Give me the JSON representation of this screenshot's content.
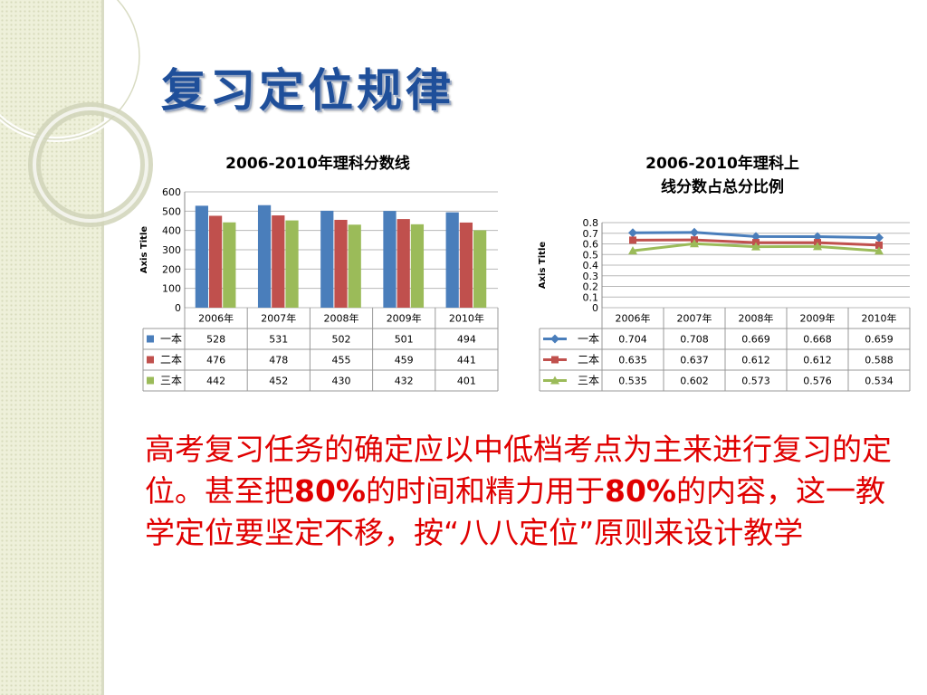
{
  "slide": {
    "title": "复习定位规律",
    "body_parts": [
      "高考复习任务的确定应以中低档考点为主来进行复习的定位。甚至把",
      "80%",
      "的时间和精力用于",
      "80%",
      "的内容，这一教学定位要坚定不移，按“八八定位”原则来设计教学"
    ]
  },
  "chart_data": [
    {
      "type": "bar",
      "title": "2006-2010年理科分数线",
      "ylabel": "Axis Title",
      "xlabel": "",
      "categories": [
        "2006年",
        "2007年",
        "2008年",
        "2009年",
        "2010年"
      ],
      "ylim": [
        0,
        600
      ],
      "yticks": [
        "0",
        "100",
        "200",
        "300",
        "400",
        "500",
        "600"
      ],
      "grid": true,
      "legend": "data-table",
      "series": [
        {
          "name": "一本",
          "color": "#4a7ebb",
          "values": [
            528,
            531,
            502,
            501,
            494
          ],
          "labels": [
            "528",
            "531",
            "502",
            "501",
            "494"
          ]
        },
        {
          "name": "二本",
          "color": "#c0504d",
          "values": [
            476,
            478,
            455,
            459,
            441
          ],
          "labels": [
            "476",
            "478",
            "455",
            "459",
            "441"
          ]
        },
        {
          "name": "三本",
          "color": "#9bbb59",
          "values": [
            442,
            452,
            430,
            432,
            401
          ],
          "labels": [
            "442",
            "452",
            "430",
            "432",
            "401"
          ]
        }
      ]
    },
    {
      "type": "line",
      "title": "2006-2010年理科上线分数占总分比例",
      "ylabel": "Axis Title",
      "xlabel": "",
      "categories": [
        "2006年",
        "2007年",
        "2008年",
        "2009年",
        "2010年"
      ],
      "ylim": [
        0,
        0.8
      ],
      "yticks": [
        "0",
        "0.1",
        "0.2",
        "0.3",
        "0.4",
        "0.5",
        "0.6",
        "0.7",
        "0.8"
      ],
      "grid": true,
      "legend": "data-table",
      "series": [
        {
          "name": "一本",
          "color": "#4a7ebb",
          "marker": "diamond",
          "values": [
            0.704,
            0.708,
            0.669,
            0.668,
            0.659
          ],
          "labels": [
            "0.704",
            "0.708",
            "0.669",
            "0.668",
            "0.659"
          ]
        },
        {
          "name": "二本",
          "color": "#c0504d",
          "marker": "square",
          "values": [
            0.635,
            0.637,
            0.612,
            0.612,
            0.588
          ],
          "labels": [
            "0.635",
            "0.637",
            "0.612",
            "0.612",
            "0.588"
          ]
        },
        {
          "name": "三本",
          "color": "#9bbb59",
          "marker": "triangle",
          "values": [
            0.535,
            0.602,
            0.573,
            0.576,
            0.534
          ],
          "labels": [
            "0.535",
            "0.602",
            "0.573",
            "0.576",
            "0.534"
          ]
        }
      ]
    }
  ]
}
